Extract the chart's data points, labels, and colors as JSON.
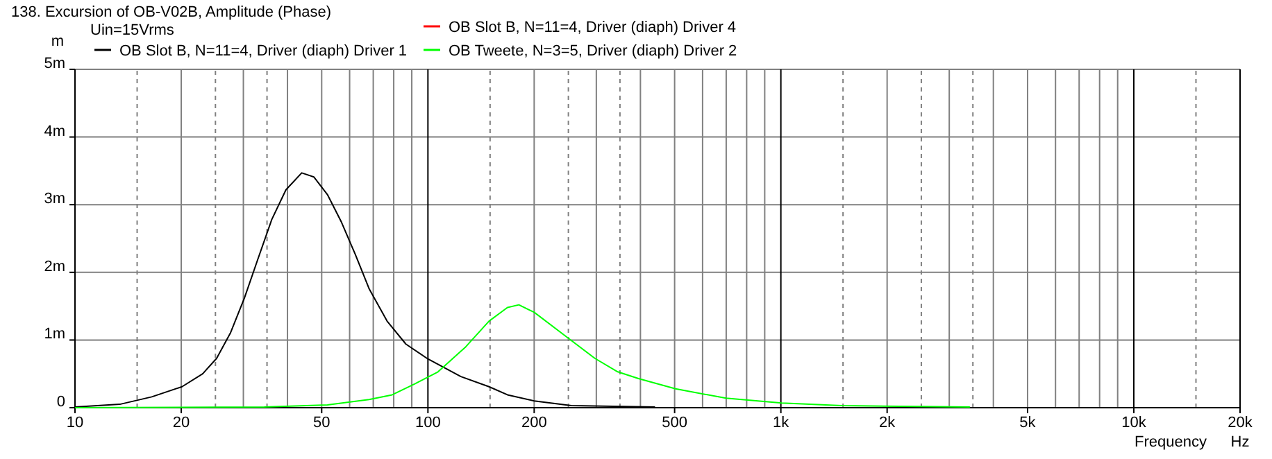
{
  "chart_data": {
    "type": "line",
    "title": "138. Excursion of OB-V02B, Amplitude (Phase)",
    "xlabel": "Frequency",
    "ylabel": "m",
    "annotations": [
      "Uin=15Vrms",
      "Hz"
    ],
    "log": "x",
    "grid": true,
    "legend": "top",
    "xlim": [
      10,
      20000
    ],
    "ylim": [
      0,
      5
    ],
    "xticks": [
      10,
      20,
      50,
      100,
      200,
      500,
      {
        "value": 1000,
        "label": "1k"
      },
      {
        "value": 2000,
        "label": "2k"
      },
      {
        "value": 5000,
        "label": "5k"
      },
      {
        "value": 10000,
        "label": "10k"
      },
      {
        "value": 20000,
        "label": "20k"
      }
    ],
    "yticks": [
      0,
      {
        "value": 1,
        "label": "1m"
      },
      {
        "value": 2,
        "label": "2m"
      },
      {
        "value": 3,
        "label": "3m"
      },
      {
        "value": 4,
        "label": "4m"
      },
      {
        "value": 5,
        "label": "5m"
      }
    ],
    "series": [
      {
        "name": "OB Slot B, N=11=4, Driver (diaph) Driver 1",
        "color": "#000000",
        "x": [
          10,
          13.4,
          16.5,
          20.1,
          23,
          25.2,
          27.6,
          30.2,
          33,
          36.1,
          39.6,
          43.9,
          47.5,
          51.9,
          56.9,
          62.2,
          68.1,
          76.6,
          86.6,
          100,
          124,
          149,
          168,
          200,
          255,
          440
        ],
        "values": [
          0.01,
          0.05,
          0.16,
          0.31,
          0.5,
          0.73,
          1.11,
          1.62,
          2.2,
          2.78,
          3.22,
          3.47,
          3.41,
          3.15,
          2.74,
          2.27,
          1.76,
          1.28,
          0.94,
          0.72,
          0.46,
          0.31,
          0.19,
          0.1,
          0.03,
          0.01
        ]
      },
      {
        "name": "OB Slot B, N=11=4, Driver (diaph) Driver 4",
        "color": "#ff0000"
      },
      {
        "name": "OB Tweete, N=3=5, Driver (diaph) Driver 2",
        "color": "#00ff00",
        "x": [
          10,
          34.4,
          51.9,
          68.1,
          79.2,
          91.6,
          106.8,
          128,
          149,
          168,
          181,
          200,
          248,
          297,
          345,
          395,
          503,
          699,
          1006,
          1487,
          3432
        ],
        "values": [
          0,
          0.01,
          0.04,
          0.12,
          0.19,
          0.35,
          0.53,
          0.9,
          1.28,
          1.48,
          1.52,
          1.41,
          1.04,
          0.73,
          0.53,
          0.43,
          0.28,
          0.14,
          0.07,
          0.03,
          0.01
        ]
      }
    ]
  }
}
